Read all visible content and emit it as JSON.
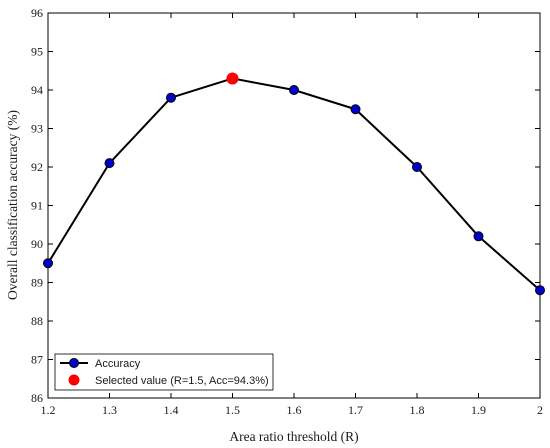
{
  "chart_data": {
    "type": "line",
    "title": "",
    "xlabel": "Area ratio threshold (R)",
    "ylabel": "Overall classification accuracy (%)",
    "xlim": [
      1.2,
      2.0
    ],
    "ylim": [
      86,
      96
    ],
    "xticks": [
      "1.2",
      "1.3",
      "1.4",
      "1.5",
      "1.6",
      "1.7",
      "1.8",
      "1.9",
      "2"
    ],
    "yticks": [
      "86",
      "87",
      "88",
      "89",
      "90",
      "91",
      "92",
      "93",
      "94",
      "95",
      "96"
    ],
    "x": [
      1.2,
      1.3,
      1.4,
      1.5,
      1.6,
      1.7,
      1.8,
      1.9,
      2.0
    ],
    "series": [
      {
        "name": "Accuracy",
        "values": [
          89.5,
          92.1,
          93.8,
          94.3,
          94.0,
          93.5,
          92.0,
          90.2,
          88.8
        ],
        "color": "#0000cc",
        "line_color": "#000000"
      }
    ],
    "highlight": {
      "name": "Selected value (R=1.5, Acc=94.3%)",
      "x": 1.5,
      "y": 94.3,
      "color": "#ff0000"
    },
    "grid": false,
    "legend_position": "bottom-left"
  }
}
